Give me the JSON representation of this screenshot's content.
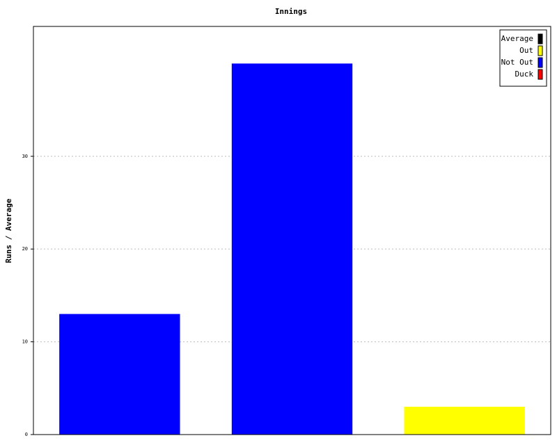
{
  "chart_data": {
    "type": "bar",
    "title": "Innings",
    "y_label": "Runs / Average",
    "categories": [
      null,
      null,
      null
    ],
    "series": [
      {
        "name": "Average",
        "color": "#000000",
        "values": [
          null,
          null,
          null
        ]
      },
      {
        "name": "Out",
        "color": "#ffff00",
        "values": [
          null,
          null,
          3
        ]
      },
      {
        "name": "Not Out",
        "color": "#0000ff",
        "values": [
          13,
          40,
          null
        ]
      },
      {
        "name": "Duck",
        "color": "#ff0000",
        "values": [
          null,
          null,
          null
        ]
      }
    ],
    "ylim": [
      0,
      44
    ],
    "yticks": [
      0,
      10,
      20,
      30
    ],
    "grid": true,
    "legend": "top-right"
  }
}
